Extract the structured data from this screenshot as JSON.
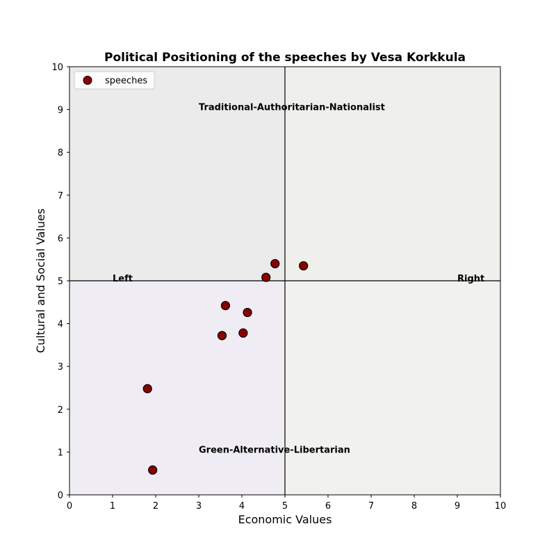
{
  "chart_data": {
    "type": "scatter",
    "title": "Political Positioning of the speeches by Vesa Korkkula",
    "xlabel": "Economic Values",
    "ylabel": "Cultural and Social Values",
    "xlim": [
      0,
      10
    ],
    "ylim": [
      0,
      10
    ],
    "xticks": [
      "0",
      "1",
      "2",
      "3",
      "4",
      "5",
      "6",
      "7",
      "8",
      "9",
      "10"
    ],
    "yticks": [
      "0",
      "1",
      "2",
      "3",
      "4",
      "5",
      "6",
      "7",
      "8",
      "9",
      "10"
    ],
    "grid": false,
    "legend_position": "top-left",
    "series": [
      {
        "name": "speeches",
        "color": "#8b0000",
        "edge_color": "#000000",
        "points": [
          {
            "x": 1.93,
            "y": 0.58
          },
          {
            "x": 1.81,
            "y": 2.48
          },
          {
            "x": 3.54,
            "y": 3.72
          },
          {
            "x": 4.03,
            "y": 3.78
          },
          {
            "x": 3.62,
            "y": 4.42
          },
          {
            "x": 4.13,
            "y": 4.26
          },
          {
            "x": 4.56,
            "y": 5.08
          },
          {
            "x": 4.77,
            "y": 5.4
          },
          {
            "x": 5.43,
            "y": 5.35
          }
        ]
      }
    ],
    "quadrants": [
      {
        "name": "top-left",
        "color": "#ebebeb"
      },
      {
        "name": "top-right",
        "color": "#eff0ec"
      },
      {
        "name": "bottom-left",
        "color": "#efedf3"
      },
      {
        "name": "bottom-right",
        "color": "#f1f2ee"
      }
    ],
    "center_lines": {
      "x": 5,
      "y": 5
    },
    "annotations": [
      {
        "text": "Traditional-Authoritarian-Nationalist",
        "x": 3.0,
        "y": 9.0
      },
      {
        "text": "Green-Alternative-Libertarian",
        "x": 3.0,
        "y": 1.0
      },
      {
        "text": "Left",
        "x": 1.0,
        "y": 5.0
      },
      {
        "text": "Right",
        "x": 9.0,
        "y": 5.0
      }
    ]
  }
}
